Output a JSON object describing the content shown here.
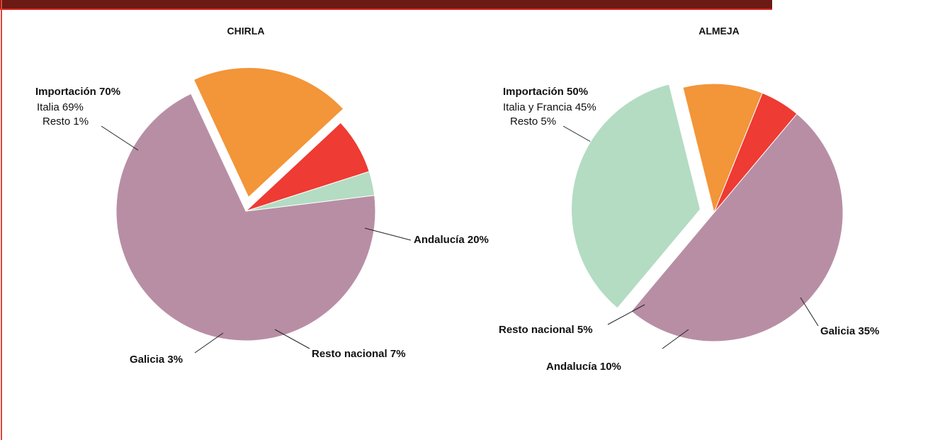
{
  "chart_data": [
    {
      "type": "pie",
      "title": "CHIRLA",
      "values": [
        70,
        20,
        7,
        3
      ],
      "value_labels": [
        "Importación 70%",
        "Andalucía 20%",
        "Resto nacional 7%",
        "Galicia 3%"
      ],
      "colors": [
        "#b88ea5",
        "#f39539",
        "#ee3b33",
        "#b3dcc3"
      ],
      "breakdown": [
        {
          "value": 69,
          "label": "Italia 69%"
        },
        {
          "value": 1,
          "label": "Resto 1%"
        }
      ]
    },
    {
      "type": "pie",
      "title": "ALMEJA",
      "values": [
        50,
        35,
        10,
        5
      ],
      "value_labels": [
        "Importación 50%",
        "Galicia 35%",
        "Andalucía 10%",
        "Resto nacional 5%"
      ],
      "colors": [
        "#b88ea5",
        "#b3dcc3",
        "#f39539",
        "#ee3b33"
      ],
      "breakdown": [
        {
          "value": 45,
          "label": "Italia y Francia 45%"
        },
        {
          "value": 5,
          "label": "Resto 5%"
        }
      ]
    }
  ]
}
